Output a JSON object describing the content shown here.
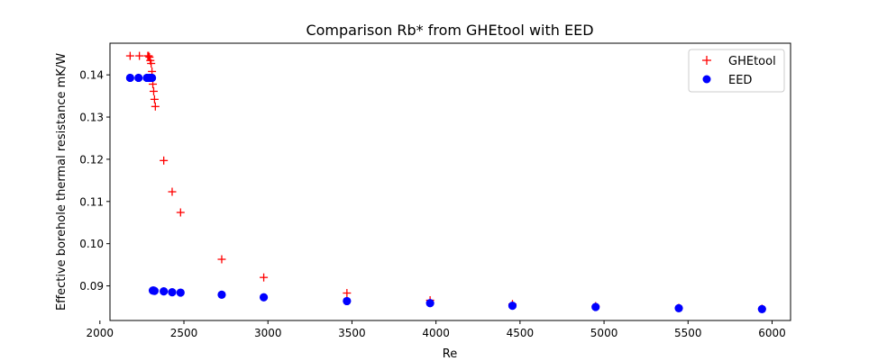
{
  "chart_data": {
    "type": "scatter",
    "title": "Comparison Rb* from GHEtool with EED",
    "xlabel": "Re",
    "ylabel": "Effective borehole thermal resistance mK/W",
    "xlim": [
      2060,
      6110
    ],
    "ylim": [
      0.0818,
      0.1475
    ],
    "xticks": [
      2000,
      2500,
      3000,
      3500,
      4000,
      4500,
      5000,
      5500,
      6000
    ],
    "xtick_labels": [
      "2000",
      "2500",
      "3000",
      "3500",
      "4000",
      "4500",
      "5000",
      "5500",
      "6000"
    ],
    "yticks": [
      0.09,
      0.1,
      0.11,
      0.12,
      0.13,
      0.14
    ],
    "ytick_labels": [
      "0.09",
      "0.10",
      "0.11",
      "0.12",
      "0.13",
      "0.14"
    ],
    "grid": false,
    "legend_position": "top-right",
    "series": [
      {
        "name": "GHEtool",
        "marker": "plus",
        "color": "#ff0000",
        "x": [
          2180,
          2235,
          2285,
          2290,
          2295,
          2300,
          2305,
          2310,
          2315,
          2320,
          2325,
          2330,
          2380,
          2430,
          2480,
          2725,
          2975,
          3470,
          3965,
          4455,
          4950,
          5445,
          5940
        ],
        "y": [
          0.1445,
          0.1445,
          0.1445,
          0.1445,
          0.1442,
          0.1434,
          0.1427,
          0.1408,
          0.1378,
          0.1361,
          0.1342,
          0.1325,
          0.1197,
          0.1123,
          0.1074,
          0.0963,
          0.092,
          0.0883,
          0.0866,
          0.0857,
          0.0852,
          0.0848,
          0.0846
        ]
      },
      {
        "name": "EED",
        "marker": "circle",
        "color": "#0000ff",
        "x": [
          2180,
          2230,
          2280,
          2295,
          2305,
          2310,
          2315,
          2320,
          2325,
          2380,
          2430,
          2480,
          2725,
          2975,
          3470,
          3965,
          4455,
          4950,
          5445,
          5940
        ],
        "y": [
          0.1393,
          0.1393,
          0.1393,
          0.1393,
          0.1393,
          0.1393,
          0.0889,
          0.0889,
          0.0888,
          0.0887,
          0.0885,
          0.0884,
          0.0879,
          0.0873,
          0.0864,
          0.0859,
          0.0853,
          0.085,
          0.0847,
          0.0845
        ]
      }
    ]
  }
}
